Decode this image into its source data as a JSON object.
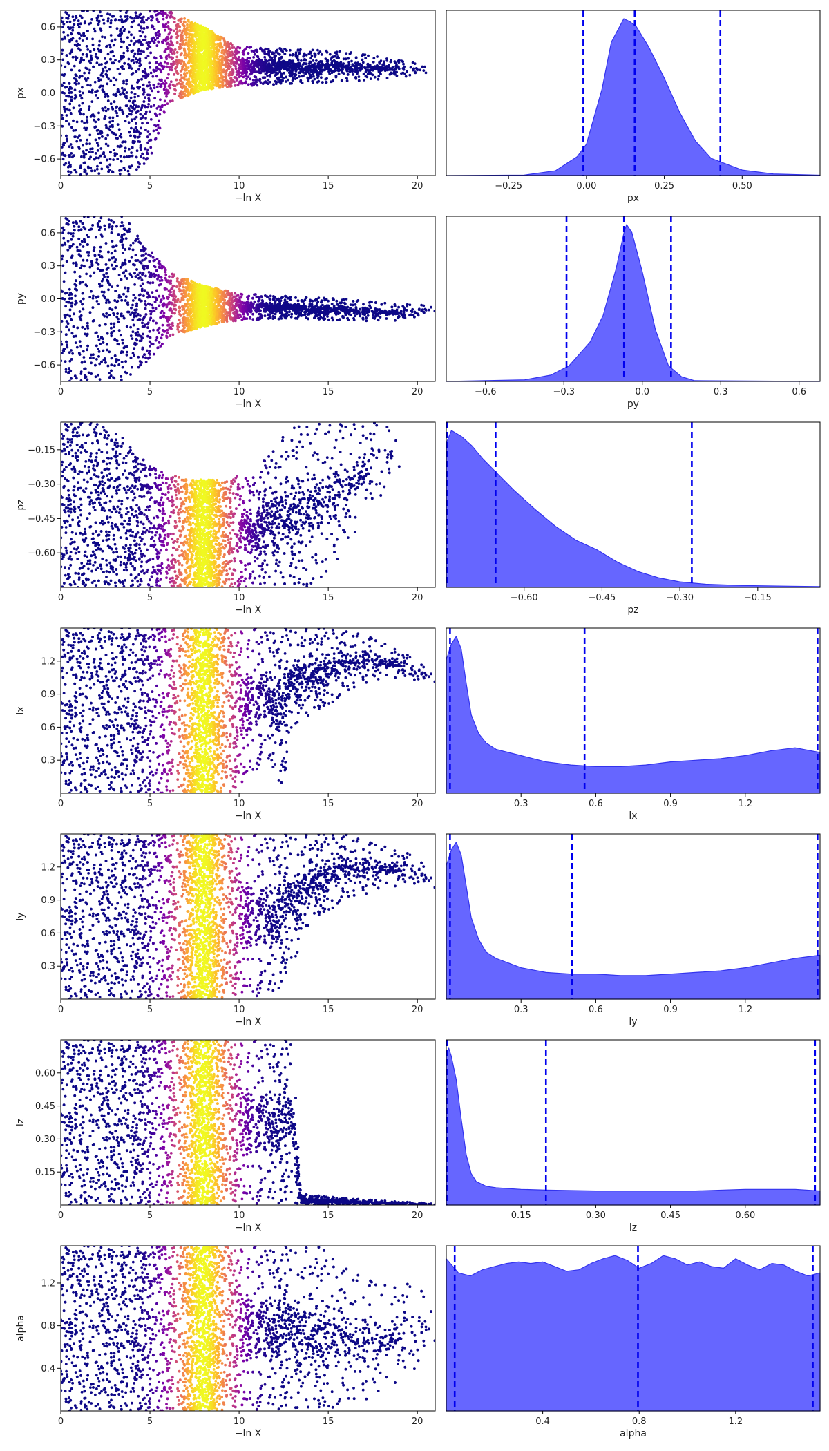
{
  "chart_data": [
    {
      "type": "scatter",
      "ylabel": "px",
      "xlabel": "−ln X",
      "xlim": [
        0,
        21
      ],
      "ylim": [
        -0.75,
        0.75
      ],
      "xticks": [
        0,
        5,
        10,
        15,
        20
      ],
      "xtick_labels": [
        "0",
        "5",
        "10",
        "15",
        "20"
      ],
      "yticks": [
        -0.6,
        -0.3,
        0.0,
        0.3,
        0.6
      ],
      "ytick_labels": [
        "−0.6",
        "−0.3",
        "0.0",
        "0.3",
        "0.6"
      ],
      "envelope": [
        [
          0,
          -0.75,
          0.75
        ],
        [
          4,
          -0.75,
          0.75
        ],
        [
          5,
          -0.6,
          0.75
        ],
        [
          6,
          -0.1,
          0.75
        ],
        [
          8,
          0.03,
          0.6
        ],
        [
          10,
          0.06,
          0.42
        ],
        [
          13,
          0.08,
          0.4
        ],
        [
          16,
          0.1,
          0.38
        ],
        [
          19,
          0.14,
          0.3
        ],
        [
          20.5,
          0.17,
          0.27
        ]
      ],
      "colormap": "plasma",
      "color_peak_x": 8.0
    },
    {
      "type": "area",
      "xlabel": "px",
      "xlim": [
        -0.45,
        0.75
      ],
      "xticks": [
        -0.25,
        0.0,
        0.25,
        0.5
      ],
      "xtick_labels": [
        "−0.25",
        "0.00",
        "0.25",
        "0.50"
      ],
      "x": [
        -0.45,
        -0.2,
        -0.1,
        -0.03,
        0.0,
        0.05,
        0.08,
        0.12,
        0.14,
        0.16,
        0.2,
        0.25,
        0.3,
        0.35,
        0.4,
        0.5,
        0.6,
        0.75
      ],
      "y": [
        0,
        0.003,
        0.03,
        0.12,
        0.2,
        0.55,
        0.85,
        1.0,
        0.98,
        0.95,
        0.82,
        0.62,
        0.4,
        0.22,
        0.11,
        0.035,
        0.01,
        0.002
      ],
      "vlines": [
        -0.01,
        0.155,
        0.43
      ],
      "fill_color": "#6666ff",
      "line_color": "#3333ee",
      "vline_color": "#0000ee"
    },
    {
      "type": "scatter",
      "ylabel": "py",
      "xlabel": "−ln X",
      "xlim": [
        0,
        21
      ],
      "ylim": [
        -0.75,
        0.75
      ],
      "xticks": [
        0,
        5,
        10,
        15,
        20
      ],
      "xtick_labels": [
        "0",
        "5",
        "10",
        "15",
        "20"
      ],
      "yticks": [
        -0.6,
        -0.3,
        0.0,
        0.3,
        0.6
      ],
      "ytick_labels": [
        "−0.6",
        "−0.3",
        "0.0",
        "0.3",
        "0.6"
      ],
      "envelope": [
        [
          0,
          -0.75,
          0.75
        ],
        [
          3.5,
          -0.75,
          0.75
        ],
        [
          5,
          -0.55,
          0.45
        ],
        [
          6,
          -0.35,
          0.25
        ],
        [
          8,
          -0.25,
          0.12
        ],
        [
          10,
          -0.2,
          0.05
        ],
        [
          13,
          -0.18,
          0.02
        ],
        [
          16,
          -0.2,
          0.0
        ],
        [
          19,
          -0.2,
          -0.05
        ],
        [
          21,
          -0.12,
          -0.05
        ]
      ],
      "colormap": "plasma",
      "color_peak_x": 8.0
    },
    {
      "type": "area",
      "xlabel": "py",
      "xlim": [
        -0.75,
        0.68
      ],
      "xticks": [
        -0.6,
        -0.3,
        0.0,
        0.3,
        0.6
      ],
      "xtick_labels": [
        "−0.6",
        "−0.3",
        "0.0",
        "0.3",
        "0.6"
      ],
      "x": [
        -0.75,
        -0.45,
        -0.35,
        -0.28,
        -0.2,
        -0.15,
        -0.1,
        -0.07,
        -0.06,
        -0.04,
        0.0,
        0.05,
        0.1,
        0.15,
        0.2,
        0.68
      ],
      "y": [
        0,
        0.01,
        0.04,
        0.1,
        0.25,
        0.42,
        0.72,
        0.95,
        1.0,
        0.95,
        0.7,
        0.33,
        0.1,
        0.03,
        0.005,
        0
      ],
      "vlines": [
        -0.29,
        -0.07,
        0.11
      ],
      "fill_color": "#6666ff",
      "line_color": "#3333ee",
      "vline_color": "#0000ee"
    },
    {
      "type": "scatter",
      "ylabel": "pz",
      "xlabel": "−ln X",
      "xlim": [
        0,
        21
      ],
      "ylim": [
        -0.75,
        -0.03
      ],
      "xticks": [
        0,
        5,
        10,
        15,
        20
      ],
      "xtick_labels": [
        "0",
        "5",
        "10",
        "15",
        "20"
      ],
      "yticks": [
        -0.6,
        -0.45,
        -0.3,
        -0.15
      ],
      "ytick_labels": [
        "−0.60",
        "−0.45",
        "−0.30",
        "−0.15"
      ],
      "envelope": [
        [
          0,
          -0.75,
          -0.03
        ],
        [
          2,
          -0.75,
          -0.03
        ],
        [
          3.5,
          -0.75,
          -0.1
        ],
        [
          5,
          -0.75,
          -0.22
        ],
        [
          7,
          -0.75,
          -0.28
        ],
        [
          9,
          -0.75,
          -0.28
        ],
        [
          11,
          -0.75,
          -0.25
        ],
        [
          12,
          -0.75,
          -0.12
        ],
        [
          13,
          -0.75,
          -0.05
        ],
        [
          14.5,
          -0.75,
          -0.03
        ],
        [
          17,
          -0.45,
          -0.03
        ],
        [
          19,
          -0.25,
          -0.03
        ]
      ],
      "colormap": "plasma",
      "color_peak_x": 8.0
    },
    {
      "type": "area",
      "xlabel": "pz",
      "xlim": [
        -0.75,
        -0.03
      ],
      "xticks": [
        -0.6,
        -0.45,
        -0.3,
        -0.15
      ],
      "xtick_labels": [
        "−0.60",
        "−0.45",
        "−0.30",
        "−0.15"
      ],
      "x": [
        -0.75,
        -0.74,
        -0.72,
        -0.7,
        -0.68,
        -0.65,
        -0.62,
        -0.58,
        -0.54,
        -0.5,
        -0.46,
        -0.42,
        -0.38,
        -0.34,
        -0.3,
        -0.25,
        -0.18,
        -0.1,
        -0.03
      ],
      "y": [
        0.92,
        1.0,
        0.96,
        0.9,
        0.82,
        0.72,
        0.62,
        0.5,
        0.39,
        0.3,
        0.24,
        0.16,
        0.1,
        0.06,
        0.035,
        0.02,
        0.012,
        0.008,
        0.005
      ],
      "vlines": [
        -0.748,
        -0.655,
        -0.277
      ],
      "fill_color": "#6666ff",
      "line_color": "#3333ee",
      "vline_color": "#0000ee"
    },
    {
      "type": "scatter",
      "ylabel": "lx",
      "xlabel": "−ln X",
      "xlim": [
        0,
        21
      ],
      "ylim": [
        0.0,
        1.5
      ],
      "xticks": [
        0,
        5,
        10,
        15,
        20
      ],
      "xtick_labels": [
        "0",
        "5",
        "10",
        "15",
        "20"
      ],
      "yticks": [
        0.3,
        0.6,
        0.9,
        1.2
      ],
      "ytick_labels": [
        "0.3",
        "0.6",
        "0.9",
        "1.2"
      ],
      "envelope": [
        [
          0,
          0.0,
          1.5
        ],
        [
          8,
          0.0,
          1.5
        ],
        [
          10,
          0.02,
          1.5
        ],
        [
          11.5,
          0.3,
          1.5
        ],
        [
          12.5,
          0.02,
          1.5
        ],
        [
          13,
          0.6,
          1.5
        ],
        [
          15,
          0.8,
          1.5
        ],
        [
          17,
          1.0,
          1.45
        ],
        [
          19,
          1.05,
          1.3
        ],
        [
          21,
          1.0,
          1.1
        ]
      ],
      "colormap": "plasma",
      "color_peak_x": 8.0
    },
    {
      "type": "area",
      "xlabel": "lx",
      "xlim": [
        0.0,
        1.5
      ],
      "xticks": [
        0.3,
        0.6,
        0.9,
        1.2
      ],
      "xtick_labels": [
        "0.3",
        "0.6",
        "0.9",
        "1.2"
      ],
      "x": [
        0.0,
        0.02,
        0.04,
        0.06,
        0.08,
        0.1,
        0.13,
        0.16,
        0.2,
        0.25,
        0.3,
        0.4,
        0.5,
        0.6,
        0.7,
        0.8,
        0.9,
        1.0,
        1.1,
        1.2,
        1.3,
        1.4,
        1.5
      ],
      "y": [
        0.85,
        0.95,
        1.0,
        0.92,
        0.7,
        0.5,
        0.38,
        0.32,
        0.28,
        0.26,
        0.24,
        0.2,
        0.18,
        0.17,
        0.17,
        0.18,
        0.2,
        0.21,
        0.22,
        0.24,
        0.27,
        0.29,
        0.26
      ],
      "vlines": [
        0.015,
        0.555,
        1.49
      ],
      "fill_color": "#6666ff",
      "line_color": "#3333ee",
      "vline_color": "#0000ee"
    },
    {
      "type": "scatter",
      "ylabel": "ly",
      "xlabel": "−ln X",
      "xlim": [
        0,
        21
      ],
      "ylim": [
        0.0,
        1.5
      ],
      "xticks": [
        0,
        5,
        10,
        15,
        20
      ],
      "xtick_labels": [
        "0",
        "5",
        "10",
        "15",
        "20"
      ],
      "yticks": [
        0.3,
        0.6,
        0.9,
        1.2
      ],
      "ytick_labels": [
        "0.3",
        "0.6",
        "0.9",
        "1.2"
      ],
      "envelope": [
        [
          0,
          0.0,
          1.5
        ],
        [
          8,
          0.0,
          1.5
        ],
        [
          12,
          0.02,
          1.5
        ],
        [
          13,
          0.3,
          1.5
        ],
        [
          14,
          0.7,
          1.5
        ],
        [
          16,
          0.9,
          1.5
        ],
        [
          18,
          1.0,
          1.4
        ],
        [
          20,
          1.05,
          1.3
        ],
        [
          21,
          1.0,
          1.1
        ]
      ],
      "colormap": "plasma",
      "color_peak_x": 8.0
    },
    {
      "type": "area",
      "xlabel": "ly",
      "xlim": [
        0.0,
        1.5
      ],
      "xticks": [
        0.3,
        0.6,
        0.9,
        1.2
      ],
      "xtick_labels": [
        "0.3",
        "0.6",
        "0.9",
        "1.2"
      ],
      "x": [
        0.0,
        0.02,
        0.04,
        0.06,
        0.08,
        0.1,
        0.13,
        0.16,
        0.2,
        0.25,
        0.3,
        0.4,
        0.5,
        0.6,
        0.7,
        0.8,
        0.9,
        1.0,
        1.1,
        1.2,
        1.3,
        1.4,
        1.5
      ],
      "y": [
        0.85,
        0.95,
        1.0,
        0.92,
        0.72,
        0.52,
        0.38,
        0.3,
        0.26,
        0.23,
        0.2,
        0.17,
        0.16,
        0.16,
        0.15,
        0.15,
        0.16,
        0.17,
        0.18,
        0.2,
        0.23,
        0.26,
        0.28
      ],
      "vlines": [
        0.015,
        0.505,
        1.49
      ],
      "fill_color": "#6666ff",
      "line_color": "#3333ee",
      "vline_color": "#0000ee"
    },
    {
      "type": "scatter",
      "ylabel": "lz",
      "xlabel": "−ln X",
      "xlim": [
        0,
        21
      ],
      "ylim": [
        0.0,
        0.75
      ],
      "xticks": [
        0,
        5,
        10,
        15,
        20
      ],
      "xtick_labels": [
        "0",
        "5",
        "10",
        "15",
        "20"
      ],
      "yticks": [
        0.15,
        0.3,
        0.45,
        0.6
      ],
      "ytick_labels": [
        "0.15",
        "0.30",
        "0.45",
        "0.60"
      ],
      "envelope": [
        [
          0,
          0.0,
          0.75
        ],
        [
          13,
          0.0,
          0.75
        ],
        [
          13.5,
          0.0,
          0.05
        ],
        [
          16,
          0.0,
          0.03
        ],
        [
          19,
          0.0,
          0.015
        ],
        [
          21,
          0.0,
          0.008
        ]
      ],
      "colormap": "plasma",
      "color_peak_x": 8.0
    },
    {
      "type": "area",
      "xlabel": "lz",
      "xlim": [
        0.0,
        0.75
      ],
      "xticks": [
        0.15,
        0.3,
        0.45,
        0.6
      ],
      "xtick_labels": [
        "0.15",
        "0.30",
        "0.45",
        "0.60"
      ],
      "x": [
        0.0,
        0.005,
        0.01,
        0.02,
        0.03,
        0.04,
        0.05,
        0.06,
        0.08,
        0.1,
        0.15,
        0.2,
        0.3,
        0.4,
        0.5,
        0.6,
        0.7,
        0.75
      ],
      "y": [
        0.95,
        1.0,
        0.95,
        0.8,
        0.55,
        0.32,
        0.2,
        0.15,
        0.12,
        0.11,
        0.1,
        0.095,
        0.09,
        0.09,
        0.09,
        0.1,
        0.1,
        0.09
      ],
      "vlines": [
        0.002,
        0.2,
        0.74
      ],
      "fill_color": "#6666ff",
      "line_color": "#3333ee",
      "vline_color": "#0000ee"
    },
    {
      "type": "scatter",
      "ylabel": "alpha",
      "xlabel": "−ln X",
      "xlim": [
        0,
        21
      ],
      "ylim": [
        0.0,
        1.55
      ],
      "xticks": [
        0,
        5,
        10,
        15,
        20
      ],
      "xtick_labels": [
        "0",
        "5",
        "10",
        "15",
        "20"
      ],
      "yticks": [
        0.4,
        0.8,
        1.2
      ],
      "ytick_labels": [
        "0.4",
        "0.8",
        "1.2"
      ],
      "envelope": [
        [
          0,
          0.0,
          1.55
        ],
        [
          14.5,
          0.0,
          1.55
        ],
        [
          16,
          0.05,
          1.35
        ],
        [
          18,
          0.15,
          1.2
        ],
        [
          20,
          0.4,
          1.2
        ],
        [
          21,
          0.6,
          1.1
        ]
      ],
      "colormap": "plasma",
      "color_peak_x": 8.0
    },
    {
      "type": "area",
      "xlabel": "alpha",
      "xlim": [
        0.0,
        1.55
      ],
      "xticks": [
        0.4,
        0.8,
        1.2
      ],
      "xtick_labels": [
        "0.4",
        "0.8",
        "1.2"
      ],
      "x": [
        0.0,
        0.05,
        0.1,
        0.15,
        0.2,
        0.25,
        0.3,
        0.35,
        0.4,
        0.45,
        0.5,
        0.55,
        0.6,
        0.65,
        0.7,
        0.75,
        0.8,
        0.85,
        0.9,
        0.95,
        1.0,
        1.05,
        1.1,
        1.15,
        1.2,
        1.25,
        1.3,
        1.35,
        1.4,
        1.45,
        1.5,
        1.55
      ],
      "y": [
        0.97,
        0.88,
        0.86,
        0.9,
        0.92,
        0.94,
        0.95,
        0.94,
        0.95,
        0.92,
        0.89,
        0.9,
        0.94,
        0.97,
        0.99,
        0.96,
        0.91,
        0.94,
        0.99,
        0.97,
        0.93,
        0.95,
        0.92,
        0.91,
        0.97,
        0.93,
        0.9,
        0.94,
        0.93,
        0.89,
        0.86,
        0.88
      ],
      "vlines": [
        0.035,
        0.795,
        1.52
      ],
      "fill_color": "#6666ff",
      "line_color": "#3333ee",
      "vline_color": "#0000ee"
    }
  ]
}
